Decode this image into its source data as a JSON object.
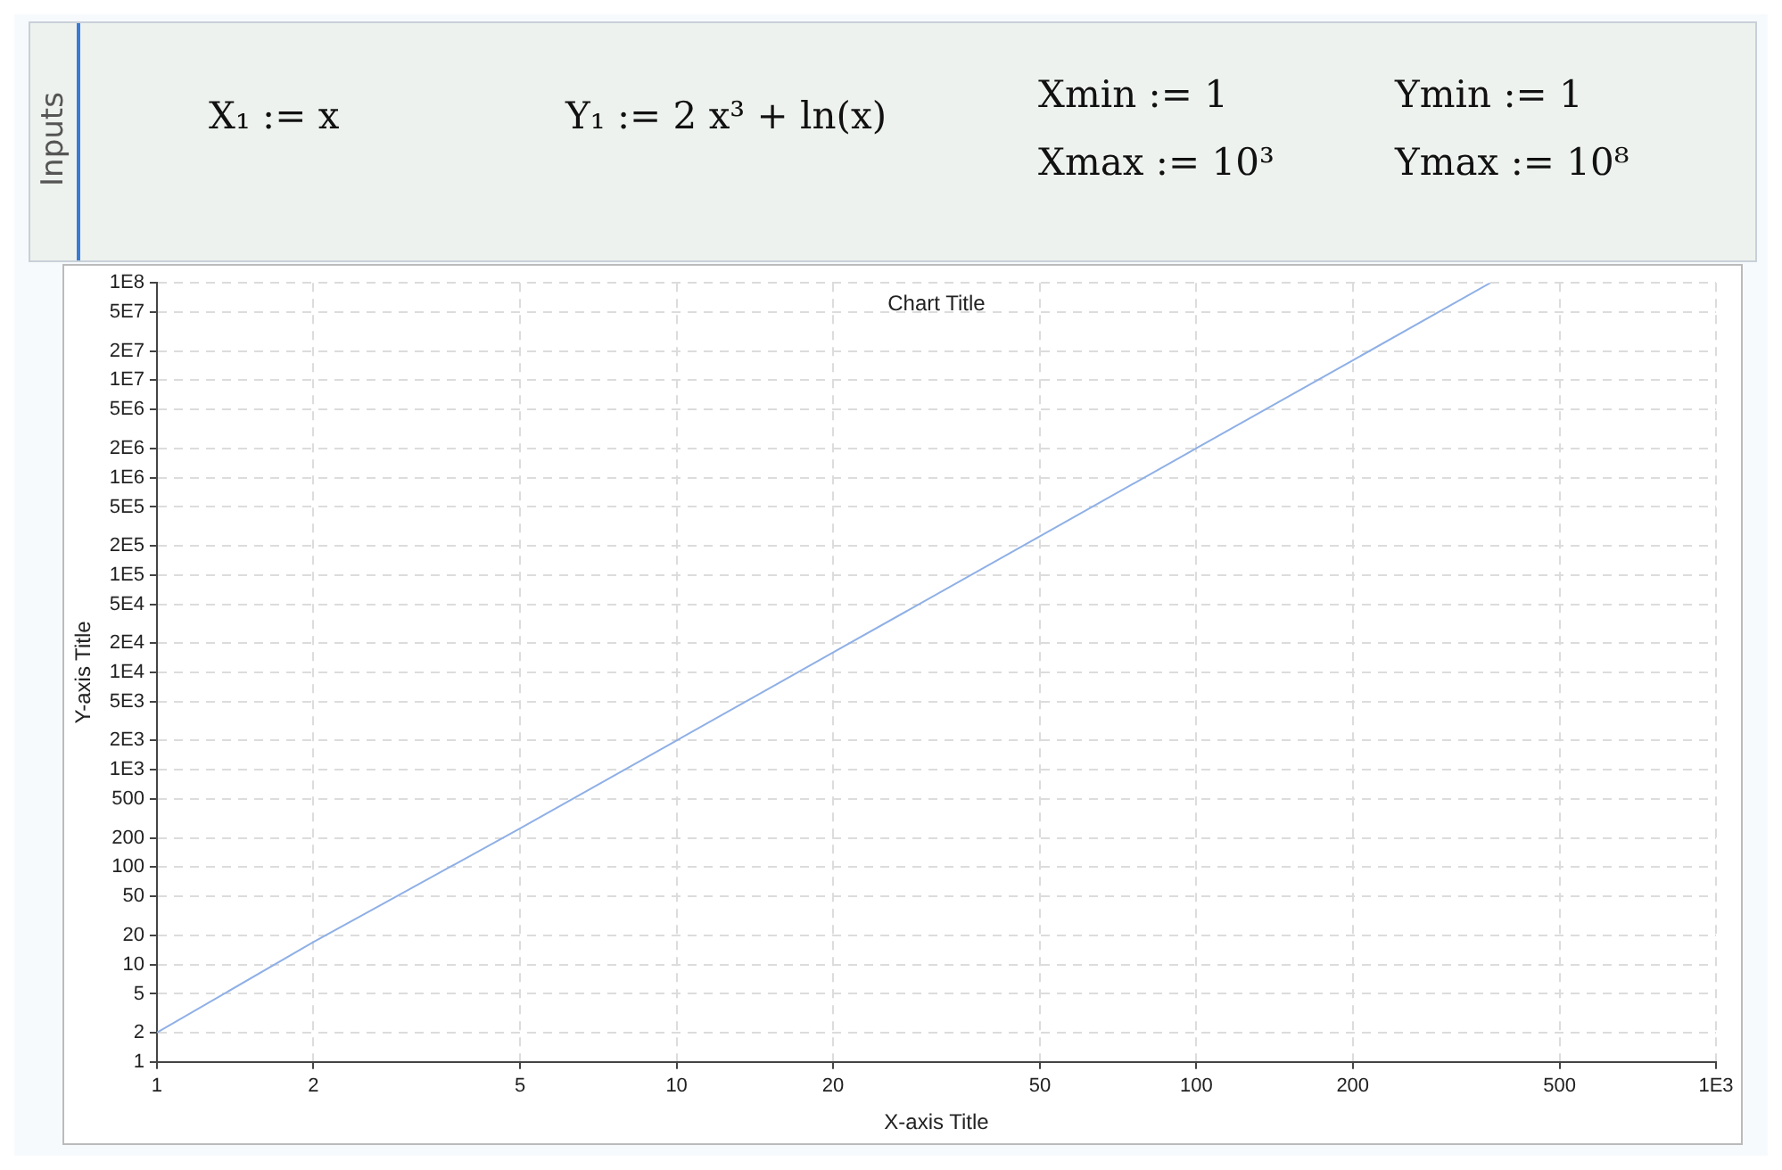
{
  "chart_data": {
    "type": "line",
    "title": "Chart Title",
    "xlabel": "X-axis Title",
    "ylabel": "Y-axis Title",
    "annotations": [
      "Inputs",
      "X₁ := x",
      "Y₁ := 2 x³ + ln(x)",
      "Xmin := 1",
      "Xmax := 10³",
      "Ymin := 1",
      "Ymax := 10⁸"
    ],
    "x": [
      1,
      2,
      5,
      10,
      20,
      50,
      100,
      200,
      368
    ],
    "series": [
      {
        "color": "#8fb0e6",
        "values": [
          2,
          17,
          250,
          2000,
          16000,
          250000,
          2000000,
          16000000,
          100000000
        ]
      }
    ],
    "log": "xy",
    "xlim": [
      1,
      1000
    ],
    "ylim": [
      1,
      100000000
    ],
    "xticks": [
      1,
      2,
      5,
      10,
      20,
      50,
      100,
      200,
      500,
      {
        "value": 1000,
        "label": "1E3"
      }
    ],
    "yticks": [
      1,
      2,
      5,
      10,
      20,
      50,
      100,
      200,
      500,
      {
        "value": 1000,
        "label": "1E3"
      },
      {
        "value": 2000,
        "label": "2E3"
      },
      {
        "value": 5000,
        "label": "5E3"
      },
      {
        "value": 10000,
        "label": "1E4"
      },
      {
        "value": 20000,
        "label": "2E4"
      },
      {
        "value": 50000,
        "label": "5E4"
      },
      {
        "value": 100000,
        "label": "1E5"
      },
      {
        "value": 200000,
        "label": "2E5"
      },
      {
        "value": 500000,
        "label": "5E5"
      },
      {
        "value": 1000000,
        "label": "1E6"
      },
      {
        "value": 2000000,
        "label": "2E6"
      },
      {
        "value": 5000000,
        "label": "5E6"
      },
      {
        "value": 10000000,
        "label": "1E7"
      },
      {
        "value": 20000000,
        "label": "2E7"
      },
      {
        "value": 50000000,
        "label": "5E7"
      },
      {
        "value": 100000000,
        "label": "1E8"
      }
    ],
    "grid": true,
    "legend": false,
    "marker": "none",
    "line_style": "solid"
  }
}
